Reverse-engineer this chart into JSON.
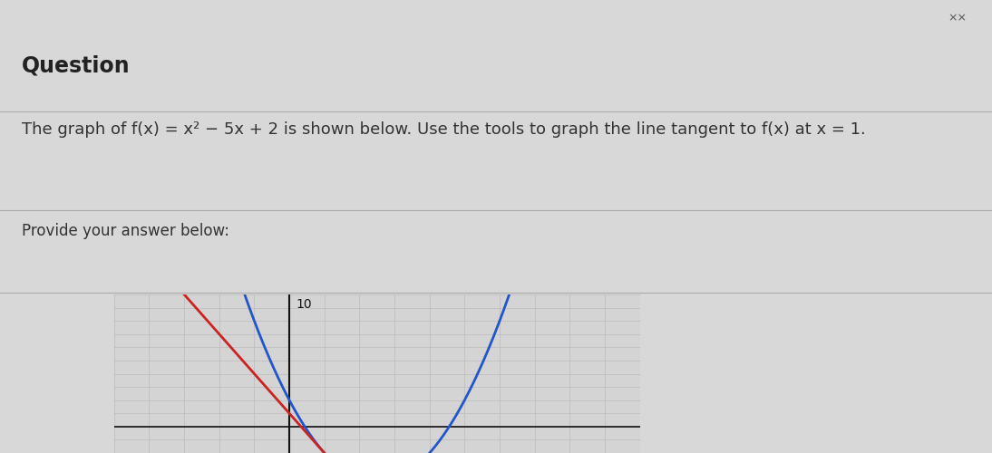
{
  "title": "Question",
  "subtitle": "The graph of f(x) = x² − 5x + 2 is shown below. Use the tools to graph the line tangent to f(x) at x = 1.",
  "provide_text": "Provide your answer below:",
  "y_label_value": "10",
  "bg_color_top": "#d8d8d8",
  "bg_color_graph": "#d4d4d4",
  "grid_color": "#bbbbbb",
  "parabola_color": "#2255cc",
  "tangent_color": "#cc2222",
  "axis_color": "#111111",
  "separator_color": "#aaaaaa",
  "x_range": [
    -5,
    10
  ],
  "y_range": [
    -10,
    10
  ],
  "y_display_min": 0,
  "y_display_max": 10,
  "title_fontsize": 17,
  "subtitle_fontsize": 13,
  "provide_fontsize": 12,
  "title_color": "#222222",
  "subtitle_color": "#333333",
  "top_bar_color": "#c8c8c8"
}
